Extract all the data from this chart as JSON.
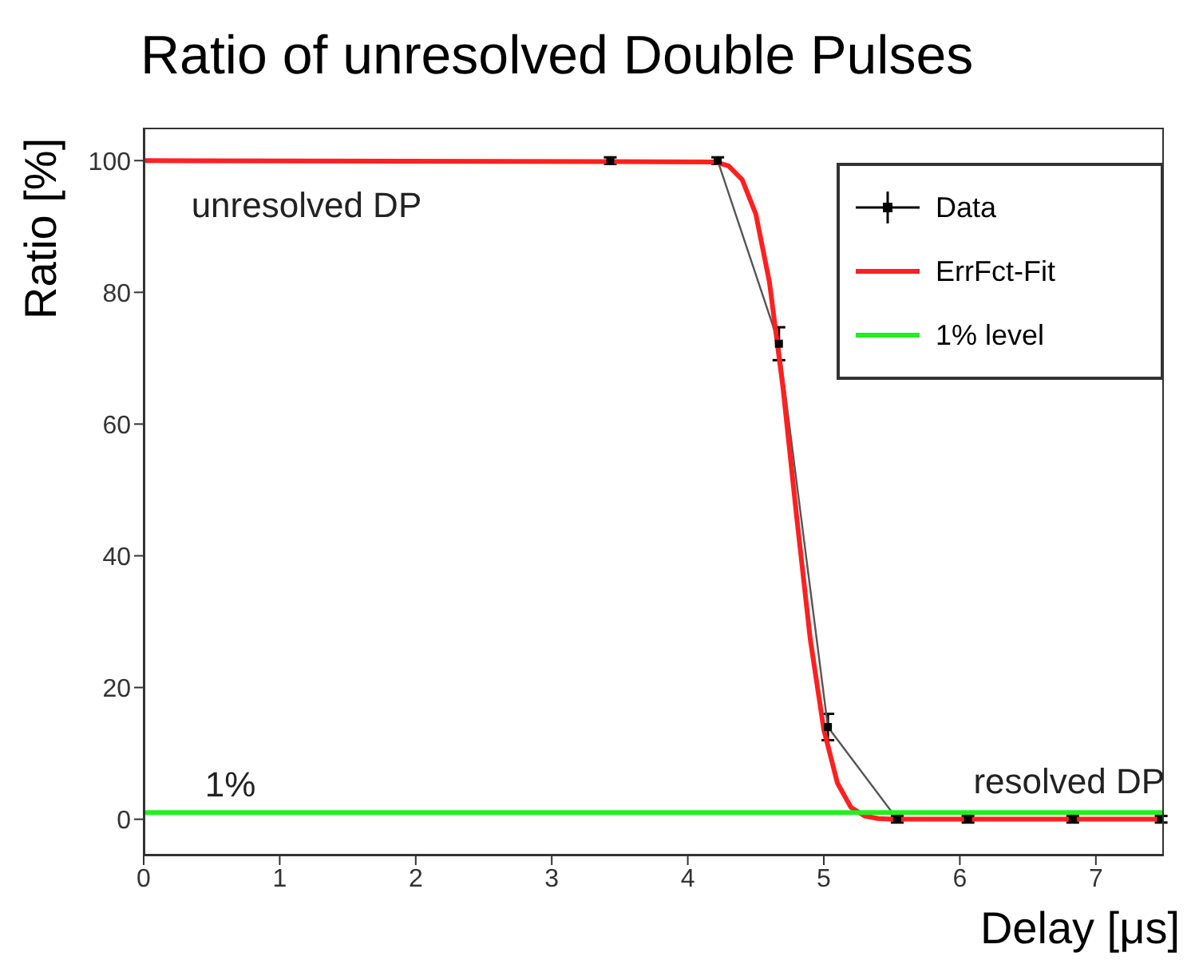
{
  "chart_data": {
    "type": "line",
    "title": "Ratio of unresolved Double Pulses",
    "xlabel": "Delay [μs]",
    "ylabel": "Ratio [%]",
    "xlim": [
      0,
      7.5
    ],
    "xticks": [
      0,
      1,
      2,
      3,
      4,
      5,
      6,
      7
    ],
    "ylim": [
      -5.5,
      105
    ],
    "yticks": [
      0,
      20,
      40,
      60,
      80,
      100
    ],
    "legend": "top right",
    "marker": "none",
    "line_style": "solid",
    "series": [
      {
        "name": "Data",
        "color": "#555555",
        "marker": "square",
        "x": [
          3.43,
          4.22,
          4.67,
          5.03,
          5.54,
          6.06,
          6.83,
          7.48
        ],
        "values": [
          100,
          100,
          72.2,
          14,
          0,
          0,
          0,
          0
        ],
        "errors": [
          0.5,
          0.5,
          2.5,
          2,
          0.5,
          0.5,
          0.5,
          0.5
        ]
      },
      {
        "name": "ErrFct-Fit",
        "color": "#ff2020",
        "x": [
          0,
          4.2,
          4.3,
          4.4,
          4.5,
          4.6,
          4.7,
          4.8,
          4.9,
          5.0,
          5.1,
          5.2,
          5.3,
          5.4,
          5.5,
          7.5
        ],
        "values": [
          100,
          99.8,
          99.2,
          97.1,
          91.9,
          81.6,
          65.5,
          46,
          27.4,
          13.6,
          5.5,
          1.8,
          0.5,
          0.1,
          0,
          0
        ]
      },
      {
        "name": "1% level",
        "color": "#22ee22",
        "x": [
          0,
          7.5
        ],
        "values": [
          1,
          1
        ]
      }
    ],
    "annotations": [
      "unresolved DP",
      "1%",
      "resolved DP"
    ]
  }
}
